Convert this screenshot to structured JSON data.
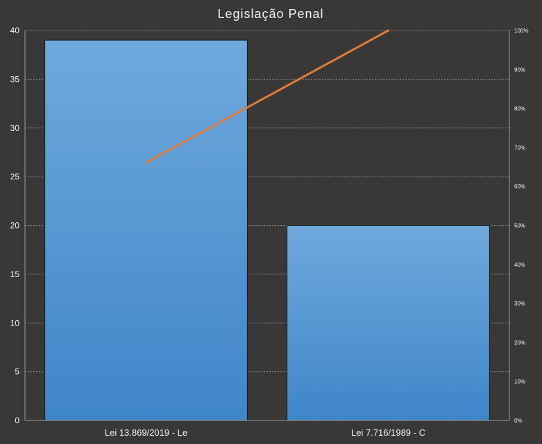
{
  "chart_data": {
    "type": "bar",
    "title": "Legislação Penal",
    "categories": [
      "Lei 13.869/2019 - Le",
      "Lei 7.716/1989 - C"
    ],
    "series": [
      {
        "type": "bar",
        "values": [
          39,
          20
        ]
      },
      {
        "type": "line",
        "axis": "right",
        "values": [
          66.1,
          100
        ]
      }
    ],
    "xlabel": "",
    "ylabel": "",
    "ylim": [
      0,
      40
    ],
    "yticks": [
      "0",
      "5",
      "10",
      "15",
      "20",
      "25",
      "30",
      "35",
      "40"
    ],
    "y2lim": [
      0,
      100
    ],
    "y2ticks": [
      "0%",
      "10%",
      "20%",
      "30%",
      "40%",
      "50%",
      "60%",
      "70%",
      "80%",
      "90%",
      "100%"
    ],
    "grid": true,
    "legend": "none",
    "colors": {
      "background": "#3a3837",
      "bar_top": "#6fa8dc",
      "bar_bottom": "#3f86c9",
      "bar_border": "#1a1a1a",
      "line": "#e07b39",
      "grid": "#8a8a8a",
      "text": "#f2f2f2"
    }
  }
}
